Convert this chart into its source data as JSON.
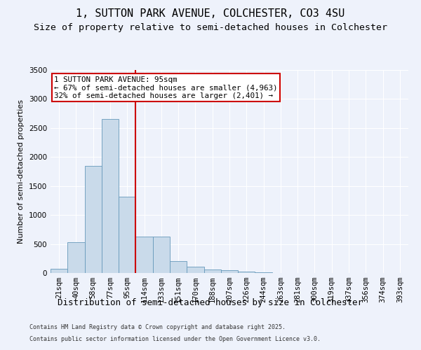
{
  "title1": "1, SUTTON PARK AVENUE, COLCHESTER, CO3 4SU",
  "title2": "Size of property relative to semi-detached houses in Colchester",
  "xlabel": "Distribution of semi-detached houses by size in Colchester",
  "ylabel": "Number of semi-detached properties",
  "bins": [
    "21sqm",
    "40sqm",
    "58sqm",
    "77sqm",
    "95sqm",
    "114sqm",
    "133sqm",
    "151sqm",
    "170sqm",
    "188sqm",
    "207sqm",
    "226sqm",
    "244sqm",
    "263sqm",
    "281sqm",
    "300sqm",
    "319sqm",
    "337sqm",
    "356sqm",
    "374sqm",
    "393sqm"
  ],
  "values": [
    75,
    530,
    1850,
    2650,
    1320,
    630,
    630,
    205,
    105,
    65,
    50,
    20,
    10,
    5,
    3,
    2,
    1,
    1,
    1,
    0,
    0
  ],
  "bar_color": "#c9daea",
  "bar_edge_color": "#6699bb",
  "vline_color": "#cc0000",
  "annotation_line1": "1 SUTTON PARK AVENUE: 95sqm",
  "annotation_line2": "← 67% of semi-detached houses are smaller (4,963)",
  "annotation_line3": "32% of semi-detached houses are larger (2,401) →",
  "annotation_box_color": "#ffffff",
  "annotation_box_edge": "#cc0000",
  "ylim": [
    0,
    3500
  ],
  "yticks": [
    0,
    500,
    1000,
    1500,
    2000,
    2500,
    3000,
    3500
  ],
  "footer1": "Contains HM Land Registry data © Crown copyright and database right 2025.",
  "footer2": "Contains public sector information licensed under the Open Government Licence v3.0.",
  "bg_color": "#eef2fb",
  "grid_color": "#ffffff",
  "title1_fontsize": 11,
  "title2_fontsize": 9.5,
  "tick_fontsize": 7.5,
  "ylabel_fontsize": 8,
  "xlabel_fontsize": 9,
  "annotation_fontsize": 7.8,
  "footer_fontsize": 6.0
}
